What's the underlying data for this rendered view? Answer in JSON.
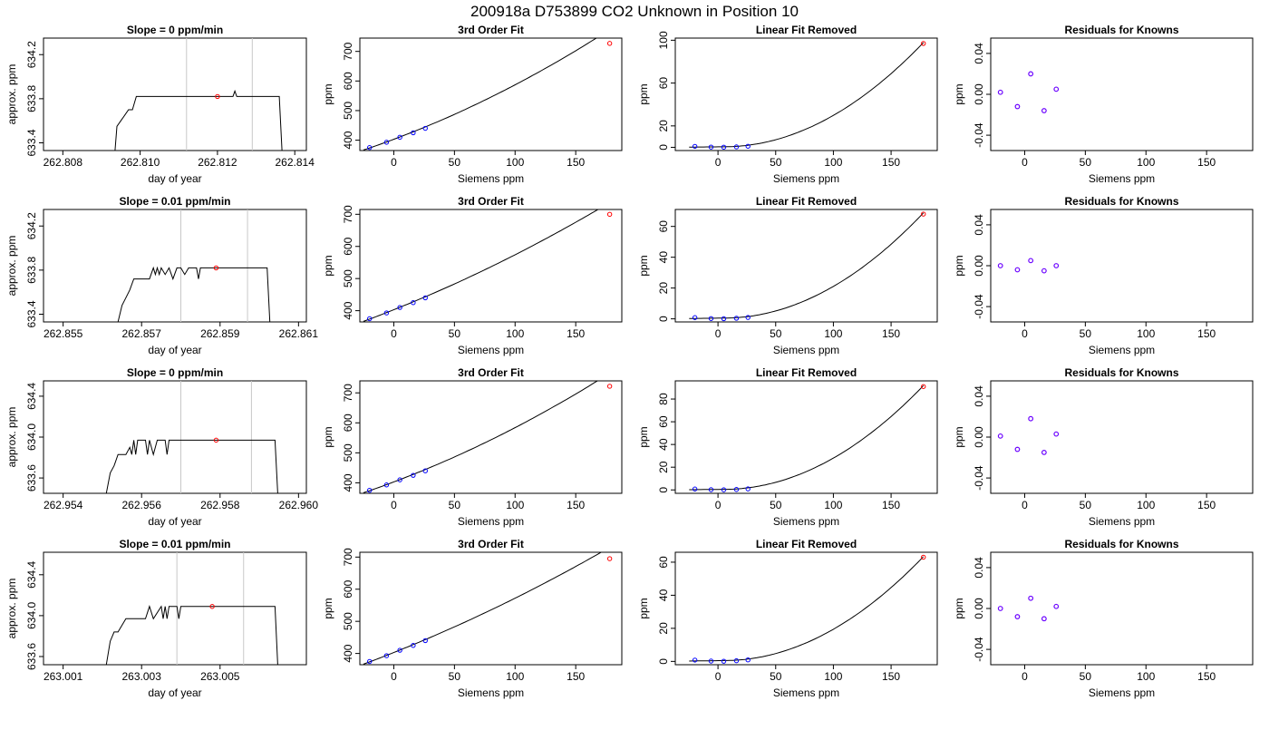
{
  "title": "200918a     D753899   CO2 Unknown in Position  10",
  "chart_data": [
    {
      "row": 0,
      "type": "line",
      "title": "Slope =  0  ppm/min",
      "xlabel": "day of year",
      "ylabel": "approx. ppm",
      "xlim": [
        262.8075,
        262.8143
      ],
      "ylim": [
        633.33,
        634.35
      ],
      "xticks": [
        "262.808",
        "262.810",
        "262.812",
        "262.814"
      ],
      "xtick_values": [
        262.808,
        262.81,
        262.812,
        262.814
      ],
      "yticks": [
        "633.4",
        "633.8",
        "634.2"
      ],
      "ytick_values": [
        633.4,
        633.8,
        634.2
      ],
      "vlines": [
        262.8112,
        262.8129
      ],
      "x": [
        262.80935,
        262.8094,
        262.8095,
        262.8096,
        262.8097,
        262.8098,
        262.8099,
        262.8101,
        262.8102,
        262.8124,
        262.81245,
        262.8125,
        262.8126,
        262.8136,
        262.81367
      ],
      "y": [
        633.33,
        633.55,
        633.6,
        633.65,
        633.7,
        633.7,
        633.82,
        633.82,
        633.82,
        633.82,
        633.87,
        633.82,
        633.82,
        633.82,
        633.33
      ],
      "point": {
        "x": 262.812,
        "y": 633.82
      }
    },
    {
      "row": 1,
      "type": "line",
      "title": "Slope =  0.01  ppm/min",
      "xlabel": "day of year",
      "ylabel": "approx. ppm",
      "xlim": [
        262.8545,
        262.8612
      ],
      "ylim": [
        633.33,
        634.35
      ],
      "xticks": [
        "262.855",
        "262.857",
        "262.859",
        "262.861"
      ],
      "xtick_values": [
        262.855,
        262.857,
        262.859,
        262.861
      ],
      "yticks": [
        "633.4",
        "633.8",
        "634.2"
      ],
      "ytick_values": [
        633.4,
        633.8,
        634.2
      ],
      "vlines": [
        262.858,
        262.8597
      ],
      "x": [
        262.8564,
        262.8565,
        262.8566,
        262.8567,
        262.8568,
        262.857,
        262.8572,
        262.8573,
        262.85735,
        262.8574,
        262.85745,
        262.8575,
        262.8576,
        262.8577,
        262.8578,
        262.8579,
        262.858,
        262.8581,
        262.8582,
        262.8584,
        262.85845,
        262.8585,
        262.8594,
        262.8595,
        262.8602,
        262.86027
      ],
      "y": [
        633.33,
        633.48,
        633.55,
        633.62,
        633.72,
        633.72,
        633.72,
        633.82,
        633.76,
        633.82,
        633.76,
        633.82,
        633.76,
        633.82,
        633.72,
        633.82,
        633.82,
        633.76,
        633.82,
        633.82,
        633.72,
        633.82,
        633.82,
        633.82,
        633.82,
        633.33
      ],
      "point": {
        "x": 262.8589,
        "y": 633.82
      }
    },
    {
      "row": 2,
      "type": "line",
      "title": "Slope =  0  ppm/min",
      "xlabel": "day of year",
      "ylabel": "approx. ppm",
      "xlim": [
        262.9535,
        262.9602
      ],
      "ylim": [
        633.45,
        634.55
      ],
      "xticks": [
        "262.954",
        "262.956",
        "262.958",
        "262.960"
      ],
      "xtick_values": [
        262.954,
        262.956,
        262.958,
        262.96
      ],
      "yticks": [
        "633.6",
        "634.0",
        "634.4"
      ],
      "ytick_values": [
        633.6,
        634.0,
        634.4
      ],
      "vlines": [
        262.957,
        262.9588
      ],
      "x": [
        262.9551,
        262.9552,
        262.9553,
        262.9554,
        262.9556,
        262.9557,
        262.95575,
        262.9558,
        262.95585,
        262.9559,
        262.9561,
        262.95615,
        262.9562,
        262.9563,
        262.9564,
        262.9566,
        262.95665,
        262.9567,
        262.9594,
        262.95947
      ],
      "y": [
        633.45,
        633.65,
        633.72,
        633.83,
        633.83,
        633.9,
        633.83,
        633.97,
        633.83,
        633.97,
        633.97,
        633.83,
        633.97,
        633.83,
        633.97,
        633.97,
        633.83,
        633.97,
        633.97,
        633.45
      ],
      "point": {
        "x": 262.9579,
        "y": 633.97
      }
    },
    {
      "row": 3,
      "type": "line",
      "title": "Slope =  0.01  ppm/min",
      "xlabel": "day of year",
      "ylabel": "approx. ppm",
      "xlim": [
        263.0005,
        263.0072
      ],
      "ylim": [
        633.52,
        634.62
      ],
      "xticks": [
        "263.001",
        "263.003",
        "263.005"
      ],
      "xtick_values": [
        263.001,
        263.003,
        263.005
      ],
      "yticks": [
        "633.6",
        "634.0",
        "634.4"
      ],
      "ytick_values": [
        633.6,
        634.0,
        634.4
      ],
      "vlines": [
        263.0039,
        263.0056
      ],
      "x": [
        263.0021,
        263.0022,
        263.0023,
        263.0024,
        263.0026,
        263.0027,
        263.0031,
        263.0032,
        263.0033,
        263.0035,
        263.00355,
        263.0036,
        263.00365,
        263.0037,
        263.0039,
        263.00395,
        263.004,
        263.0064,
        263.00647
      ],
      "y": [
        633.52,
        633.75,
        633.84,
        633.84,
        633.97,
        633.97,
        633.97,
        634.09,
        633.97,
        634.09,
        633.97,
        634.09,
        633.97,
        634.09,
        634.09,
        633.97,
        634.09,
        634.09,
        633.52
      ],
      "point": {
        "x": 263.0048,
        "y": 634.09
      }
    },
    {
      "row": 0,
      "type": "line",
      "title": "3rd Order Fit",
      "xlabel": "Siemens ppm",
      "ylabel": "ppm",
      "xlim": [
        -28,
        188
      ],
      "ylim": [
        365,
        745
      ],
      "xticks": [
        "0",
        "50",
        "100",
        "150"
      ],
      "xtick_values": [
        0,
        50,
        100,
        150
      ],
      "yticks": [
        "400",
        "500",
        "600",
        "700"
      ],
      "ytick_values": [
        400,
        500,
        600,
        700
      ],
      "curve": {
        "type": "cubic",
        "a": 403,
        "b": 1.53,
        "c": 0.0031,
        "d": 0.0,
        "xmin": -25,
        "xmax": 178
      },
      "known_points": [
        {
          "x": -20,
          "y": 375
        },
        {
          "x": -6,
          "y": 393
        },
        {
          "x": 5,
          "y": 410
        },
        {
          "x": 16,
          "y": 425
        },
        {
          "x": 26,
          "y": 440
        }
      ],
      "unknown_point": {
        "x": 178,
        "y": 727
      }
    },
    {
      "row": 1,
      "type": "line",
      "title": "3rd Order Fit",
      "xlabel": "Siemens ppm",
      "ylabel": "ppm",
      "xlim": [
        -28,
        188
      ],
      "ylim": [
        365,
        715
      ],
      "xticks": [
        "0",
        "50",
        "100",
        "150"
      ],
      "xtick_values": [
        0,
        50,
        100,
        150
      ],
      "yticks": [
        "400",
        "500",
        "600",
        "700"
      ],
      "ytick_values": [
        400,
        500,
        600,
        700
      ],
      "curve": {
        "type": "cubic",
        "a": 403,
        "b": 1.5,
        "c": 0.0021,
        "d": 0.0,
        "xmin": -25,
        "xmax": 178
      },
      "known_points": [
        {
          "x": -20,
          "y": 375
        },
        {
          "x": -6,
          "y": 393
        },
        {
          "x": 5,
          "y": 410
        },
        {
          "x": 16,
          "y": 425
        },
        {
          "x": 26,
          "y": 440
        }
      ],
      "unknown_point": {
        "x": 178,
        "y": 700
      }
    },
    {
      "row": 2,
      "type": "line",
      "title": "3rd Order Fit",
      "xlabel": "Siemens ppm",
      "ylabel": "ppm",
      "xlim": [
        -28,
        188
      ],
      "ylim": [
        365,
        740
      ],
      "xticks": [
        "0",
        "50",
        "100",
        "150"
      ],
      "xtick_values": [
        0,
        50,
        100,
        150
      ],
      "yticks": [
        "400",
        "500",
        "600",
        "700"
      ],
      "ytick_values": [
        400,
        500,
        600,
        700
      ],
      "curve": {
        "type": "cubic",
        "a": 403,
        "b": 1.52,
        "c": 0.0029,
        "d": 0.0,
        "xmin": -25,
        "xmax": 178
      },
      "known_points": [
        {
          "x": -20,
          "y": 375
        },
        {
          "x": -6,
          "y": 393
        },
        {
          "x": 5,
          "y": 410
        },
        {
          "x": 16,
          "y": 425
        },
        {
          "x": 26,
          "y": 440
        }
      ],
      "unknown_point": {
        "x": 178,
        "y": 722
      }
    },
    {
      "row": 3,
      "type": "line",
      "title": "3rd Order Fit",
      "xlabel": "Siemens ppm",
      "ylabel": "ppm",
      "xlim": [
        -28,
        188
      ],
      "ylim": [
        365,
        715
      ],
      "xticks": [
        "0",
        "50",
        "100",
        "150"
      ],
      "xtick_values": [
        0,
        50,
        100,
        150
      ],
      "yticks": [
        "400",
        "500",
        "600",
        "700"
      ],
      "ytick_values": [
        400,
        500,
        600,
        700
      ],
      "curve": {
        "type": "cubic",
        "a": 403,
        "b": 1.5,
        "c": 0.0019,
        "d": 0.0,
        "xmin": -25,
        "xmax": 178
      },
      "known_points": [
        {
          "x": -20,
          "y": 375
        },
        {
          "x": -6,
          "y": 393
        },
        {
          "x": 5,
          "y": 410
        },
        {
          "x": 16,
          "y": 425
        },
        {
          "x": 26,
          "y": 440
        }
      ],
      "unknown_point": {
        "x": 178,
        "y": 695
      }
    },
    {
      "row": 0,
      "type": "line",
      "title": "Linear Fit Removed",
      "xlabel": "Siemens ppm",
      "ylabel": "ppm",
      "xlim": [
        -37,
        190
      ],
      "ylim": [
        -3,
        102
      ],
      "xticks": [
        "0",
        "50",
        "100",
        "150"
      ],
      "xtick_values": [
        0,
        50,
        100,
        150
      ],
      "yticks": [
        "0",
        "20",
        "60",
        "100"
      ],
      "ytick_values": [
        0,
        20,
        60,
        100
      ],
      "curve": {
        "type": "quad-above",
        "base": 0.5,
        "x0": 5,
        "k": 0.00325,
        "xmin": -25,
        "xmax": 178
      },
      "known_points": [
        {
          "x": -20,
          "y": 0.9
        },
        {
          "x": -6,
          "y": 0.2
        },
        {
          "x": 5,
          "y": 0.1
        },
        {
          "x": 16,
          "y": 0.4
        },
        {
          "x": 26,
          "y": 1.0
        }
      ],
      "unknown_point": {
        "x": 178,
        "y": 97
      }
    },
    {
      "row": 1,
      "type": "line",
      "title": "Linear Fit Removed",
      "xlabel": "Siemens ppm",
      "ylabel": "ppm",
      "xlim": [
        -37,
        190
      ],
      "ylim": [
        -2,
        71
      ],
      "xticks": [
        "0",
        "50",
        "100",
        "150"
      ],
      "xtick_values": [
        0,
        50,
        100,
        150
      ],
      "yticks": [
        "0",
        "20",
        "40",
        "60"
      ],
      "ytick_values": [
        0,
        20,
        40,
        60
      ],
      "curve": {
        "type": "quad-above",
        "base": 0.5,
        "x0": 5,
        "k": 0.00228,
        "xmin": -25,
        "xmax": 178
      },
      "known_points": [
        {
          "x": -20,
          "y": 0.8
        },
        {
          "x": -6,
          "y": 0.2
        },
        {
          "x": 5,
          "y": 0.1
        },
        {
          "x": 16,
          "y": 0.4
        },
        {
          "x": 26,
          "y": 0.9
        }
      ],
      "unknown_point": {
        "x": 178,
        "y": 68
      }
    },
    {
      "row": 2,
      "type": "line",
      "title": "Linear Fit Removed",
      "xlabel": "Siemens ppm",
      "ylabel": "ppm",
      "xlim": [
        -37,
        190
      ],
      "ylim": [
        -3,
        96
      ],
      "xticks": [
        "0",
        "50",
        "100",
        "150"
      ],
      "xtick_values": [
        0,
        50,
        100,
        150
      ],
      "yticks": [
        "0",
        "20",
        "40",
        "60",
        "80"
      ],
      "ytick_values": [
        0,
        20,
        40,
        60,
        80
      ],
      "curve": {
        "type": "quad-above",
        "base": 0.5,
        "x0": 5,
        "k": 0.00305,
        "xmin": -25,
        "xmax": 178
      },
      "known_points": [
        {
          "x": -20,
          "y": 0.8
        },
        {
          "x": -6,
          "y": 0.2
        },
        {
          "x": 5,
          "y": 0.1
        },
        {
          "x": 16,
          "y": 0.4
        },
        {
          "x": 26,
          "y": 0.9
        }
      ],
      "unknown_point": {
        "x": 178,
        "y": 91
      }
    },
    {
      "row": 3,
      "type": "line",
      "title": "Linear Fit Removed",
      "xlabel": "Siemens ppm",
      "ylabel": "ppm",
      "xlim": [
        -37,
        190
      ],
      "ylim": [
        -2,
        66
      ],
      "xticks": [
        "0",
        "50",
        "100",
        "150"
      ],
      "xtick_values": [
        0,
        50,
        100,
        150
      ],
      "yticks": [
        "0",
        "20",
        "40",
        "60"
      ],
      "ytick_values": [
        0,
        20,
        40,
        60
      ],
      "curve": {
        "type": "quad-above",
        "base": 0.5,
        "x0": 5,
        "k": 0.0021,
        "xmin": -25,
        "xmax": 178
      },
      "known_points": [
        {
          "x": -20,
          "y": 0.8
        },
        {
          "x": -6,
          "y": 0.2
        },
        {
          "x": 5,
          "y": 0.1
        },
        {
          "x": 16,
          "y": 0.4
        },
        {
          "x": 26,
          "y": 0.9
        }
      ],
      "unknown_point": {
        "x": 178,
        "y": 63
      }
    },
    {
      "row": 0,
      "type": "scatter",
      "title": "Residuals for Knowns",
      "xlabel": "Siemens ppm",
      "ylabel": "ppm",
      "xlim": [
        -28,
        188
      ],
      "ylim": [
        -0.055,
        0.055
      ],
      "xticks": [
        "0",
        "50",
        "100",
        "150"
      ],
      "xtick_values": [
        0,
        50,
        100,
        150
      ],
      "yticks": [
        "-0.04",
        "0.00",
        "0.04"
      ],
      "ytick_values": [
        -0.04,
        0,
        0.04
      ],
      "points": [
        {
          "x": -20,
          "y": 0.002
        },
        {
          "x": -6,
          "y": -0.012
        },
        {
          "x": 5,
          "y": 0.02
        },
        {
          "x": 16,
          "y": -0.016
        },
        {
          "x": 26,
          "y": 0.005
        }
      ]
    },
    {
      "row": 1,
      "type": "scatter",
      "title": "Residuals for Knowns",
      "xlabel": "Siemens ppm",
      "ylabel": "ppm",
      "xlim": [
        -28,
        188
      ],
      "ylim": [
        -0.055,
        0.055
      ],
      "xticks": [
        "0",
        "50",
        "100",
        "150"
      ],
      "xtick_values": [
        0,
        50,
        100,
        150
      ],
      "yticks": [
        "-0.04",
        "0.00",
        "0.04"
      ],
      "ytick_values": [
        -0.04,
        0,
        0.04
      ],
      "points": [
        {
          "x": -20,
          "y": 0.0
        },
        {
          "x": -6,
          "y": -0.004
        },
        {
          "x": 5,
          "y": 0.005
        },
        {
          "x": 16,
          "y": -0.005
        },
        {
          "x": 26,
          "y": 0.0
        }
      ]
    },
    {
      "row": 2,
      "type": "scatter",
      "title": "Residuals for Knowns",
      "xlabel": "Siemens ppm",
      "ylabel": "ppm",
      "xlim": [
        -28,
        188
      ],
      "ylim": [
        -0.055,
        0.055
      ],
      "xticks": [
        "0",
        "50",
        "100",
        "150"
      ],
      "xtick_values": [
        0,
        50,
        100,
        150
      ],
      "yticks": [
        "-0.04",
        "0.00",
        "0.04"
      ],
      "ytick_values": [
        -0.04,
        0,
        0.04
      ],
      "points": [
        {
          "x": -20,
          "y": 0.001
        },
        {
          "x": -6,
          "y": -0.012
        },
        {
          "x": 5,
          "y": 0.018
        },
        {
          "x": 16,
          "y": -0.015
        },
        {
          "x": 26,
          "y": 0.003
        }
      ]
    },
    {
      "row": 3,
      "type": "scatter",
      "title": "Residuals for Knowns",
      "xlabel": "Siemens ppm",
      "ylabel": "ppm",
      "xlim": [
        -28,
        188
      ],
      "ylim": [
        -0.055,
        0.055
      ],
      "xticks": [
        "0",
        "50",
        "100",
        "150"
      ],
      "xtick_values": [
        0,
        50,
        100,
        150
      ],
      "yticks": [
        "-0.04",
        "0.00",
        "0.04"
      ],
      "ytick_values": [
        -0.04,
        0,
        0.04
      ],
      "points": [
        {
          "x": -20,
          "y": 0.0
        },
        {
          "x": -6,
          "y": -0.008
        },
        {
          "x": 5,
          "y": 0.01
        },
        {
          "x": 16,
          "y": -0.01
        },
        {
          "x": 26,
          "y": 0.002
        }
      ]
    }
  ],
  "colors": {
    "line": "#000000",
    "unknown_point": "#ff0000",
    "known_point": "#0000ff",
    "vline": "#c8c8c8",
    "axis": "#000000"
  }
}
